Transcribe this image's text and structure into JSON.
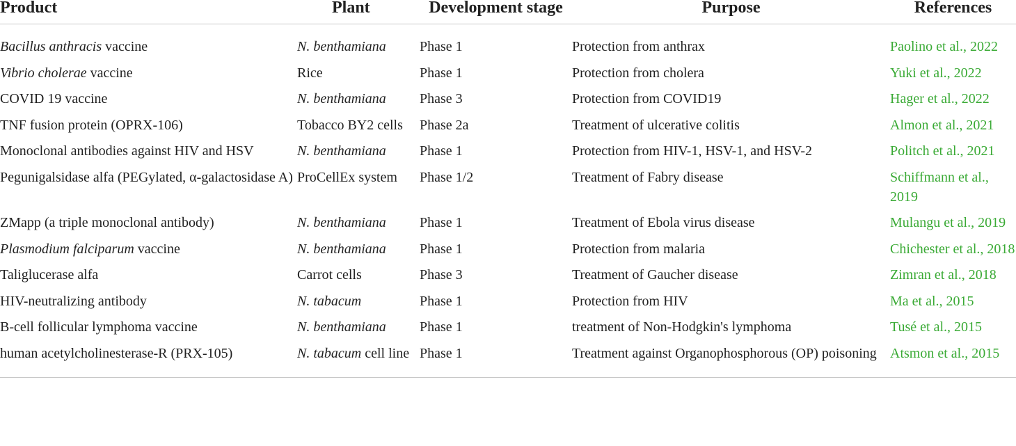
{
  "table": {
    "headers": [
      "Product",
      "Plant",
      "Development stage",
      "Purpose",
      "References"
    ],
    "rows": [
      [
        [
          {
            "text": "Bacillus anthracis",
            "italic": true
          },
          {
            "text": " vaccine"
          }
        ],
        [
          {
            "text": "N. benthamiana",
            "italic": true
          }
        ],
        "Phase 1",
        "Protection from anthrax",
        "Paolino et al., 2022"
      ],
      [
        [
          {
            "text": "Vibrio cholerae",
            "italic": true
          },
          {
            "text": " vaccine"
          }
        ],
        "Rice",
        "Phase 1",
        "Protection from cholera",
        "Yuki et al., 2022"
      ],
      [
        "COVID 19 vaccine",
        [
          {
            "text": "N. benthamiana",
            "italic": true
          }
        ],
        "Phase 3",
        "Protection from COVID19",
        "Hager et al., 2022"
      ],
      [
        "TNF fusion protein (OPRX-106)",
        "Tobacco BY2 cells",
        "Phase 2a",
        "Treatment of ulcerative colitis",
        "Almon et al., 2021"
      ],
      [
        "Monoclonal antibodies against HIV and HSV",
        [
          {
            "text": "N. benthamiana",
            "italic": true
          }
        ],
        "Phase 1",
        "Protection from HIV-1, HSV-1, and HSV-2",
        "Politch et al., 2021"
      ],
      [
        "Pegunigalsidase alfa (PEGylated, α-galactosidase A)",
        "ProCellEx system",
        "Phase 1/2",
        "Treatment of Fabry disease",
        "Schiffmann et al., 2019"
      ],
      [
        "ZMapp (a triple monoclonal antibody)",
        [
          {
            "text": "N. benthamiana",
            "italic": true
          }
        ],
        "Phase 1",
        "Treatment of Ebola virus disease",
        "Mulangu et al., 2019"
      ],
      [
        [
          {
            "text": "Plasmodium falciparum",
            "italic": true
          },
          {
            "text": " vaccine"
          }
        ],
        [
          {
            "text": "N. benthamiana",
            "italic": true
          }
        ],
        "Phase 1",
        "Protection from malaria",
        "Chichester et al., 2018"
      ],
      [
        "Taliglucerase alfa",
        "Carrot cells",
        "Phase 3",
        "Treatment of Gaucher disease",
        "Zimran et al., 2018"
      ],
      [
        "HIV-neutralizing antibody",
        [
          {
            "text": "N. tabacum",
            "italic": true
          }
        ],
        "Phase 1",
        "Protection from HIV",
        "Ma et al., 2015"
      ],
      [
        "B-cell follicular lymphoma vaccine",
        [
          {
            "text": "N. benthamiana",
            "italic": true
          }
        ],
        "Phase 1",
        "treatment of Non-Hodgkin's lymphoma",
        "Tusé et al., 2015"
      ],
      [
        "human acetylcholinesterase-R (PRX-105)",
        [
          {
            "text": "N. tabacum",
            "italic": true
          },
          {
            "text": " cell line"
          }
        ],
        "Phase 1",
        "Treatment against Organophosphorous (OP) poisoning",
        "Atsmon et al., 2015"
      ]
    ]
  }
}
